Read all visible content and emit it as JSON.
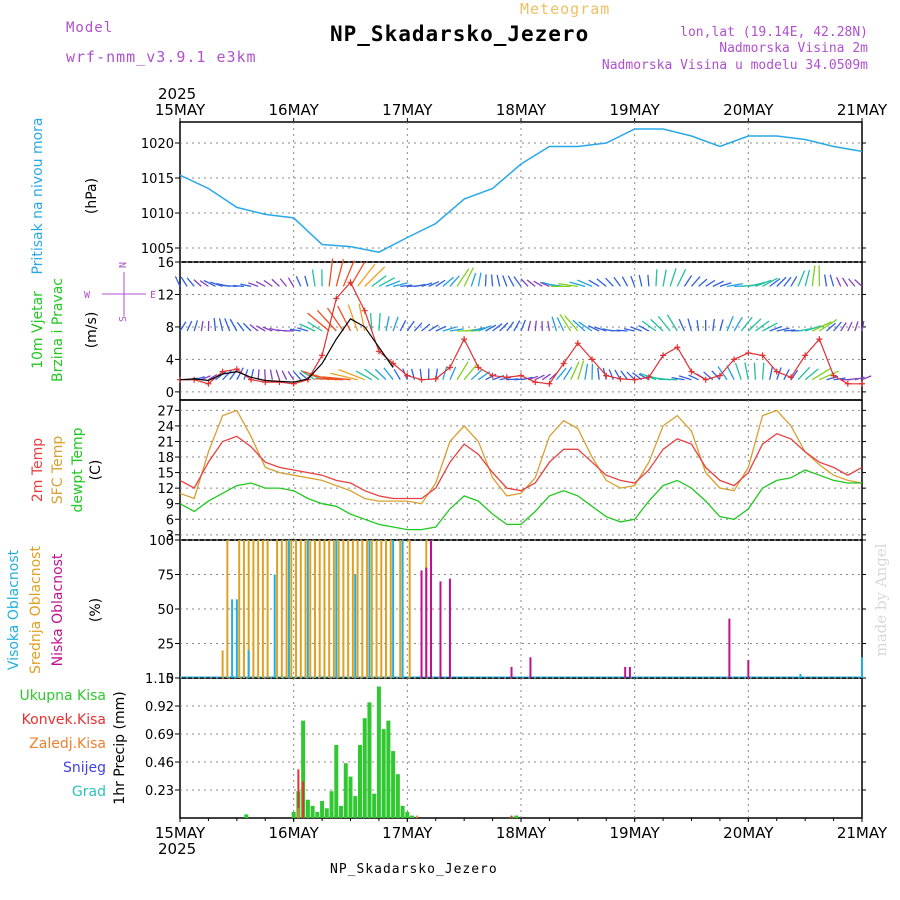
{
  "header": {
    "model_label": "Model",
    "model_name": "wrf-nmm_v3.9.1 e3km",
    "meteogram_label": "Meteogram",
    "title": "NP_Skadarsko_Jezero",
    "lonlat": "lon,lat (19.14E, 42.28N)",
    "altitude": "Nadmorska Visina 2m",
    "model_altitude": "Nadmorska Visina u modelu 34.0509m"
  },
  "footer": {
    "station": "NP_Skadarsko_Jezero"
  },
  "watermark": "made by Angel",
  "time_axis": {
    "year": "2025",
    "ticks": [
      "15MAY",
      "16MAY",
      "17MAY",
      "18MAY",
      "19MAY",
      "20MAY",
      "21MAY"
    ]
  },
  "colors": {
    "pressure": "#29a8e8",
    "wind_speed": "#e03030",
    "wind_avg": "#000000",
    "temp2m": "#e84040",
    "sfc": "#d8a030",
    "dewpt": "#20c820",
    "high_cloud": "#20b0e0",
    "mid_cloud": "#e0a020",
    "low_cloud": "#c01090",
    "precip_total": "#30c830",
    "precip_conv": "#e83030",
    "precip_frz": "#f08030",
    "snow": "#4040e0",
    "hail": "#30c0c0",
    "axis_label_purple": "#b050d0"
  },
  "chart_data": [
    {
      "type": "line",
      "title": "Pritisak na nivou mora",
      "ylabel": "(hPa)",
      "ylim": [
        1003,
        1023
      ],
      "yticks": [
        1005,
        1010,
        1015,
        1020
      ],
      "x": [
        0,
        6,
        12,
        18,
        24,
        30,
        36,
        42,
        48,
        54,
        60,
        66,
        72,
        78,
        84,
        90,
        96,
        102,
        108,
        114,
        120,
        126,
        132,
        138,
        144
      ],
      "series": [
        {
          "name": "Pressure",
          "values": [
            1015.4,
            1013.5,
            1010.8,
            1009.8,
            1009.3,
            1005.5,
            1005.2,
            1004.4,
            1006.5,
            1008.5,
            1012.0,
            1013.5,
            1017.0,
            1019.5,
            1019.5,
            1020.0,
            1022.0,
            1022.0,
            1021.0,
            1019.5,
            1021.0,
            1021.0,
            1020.5,
            1019.5,
            1018.8
          ]
        }
      ]
    },
    {
      "type": "line",
      "title": "10m Vjetar Brzina i Pravac",
      "ylabel": "(m/s)",
      "ylim": [
        -1,
        16
      ],
      "yticks": [
        0,
        4,
        8,
        12,
        16
      ],
      "legend_compass": [
        "W",
        "E",
        "N",
        "S"
      ],
      "x": [
        0,
        3,
        6,
        9,
        12,
        15,
        18,
        21,
        24,
        27,
        30,
        33,
        36,
        39,
        42,
        45,
        48,
        51,
        54,
        57,
        60,
        63,
        66,
        69,
        72,
        75,
        78,
        81,
        84,
        87,
        90,
        93,
        96,
        99,
        102,
        105,
        108,
        111,
        114,
        117,
        120,
        123,
        126,
        129,
        132,
        135,
        138,
        141,
        144
      ],
      "series": [
        {
          "name": "Wind speed",
          "values": [
            1.5,
            1.5,
            1.0,
            2.5,
            2.8,
            1.5,
            1.2,
            1.2,
            1.0,
            1.5,
            4.5,
            11.5,
            13.5,
            10.0,
            5.0,
            3.5,
            2.0,
            1.5,
            1.6,
            3.0,
            6.5,
            3.0,
            2.0,
            1.8,
            2.0,
            1.2,
            1.0,
            3.5,
            6.0,
            4.0,
            2.0,
            1.6,
            1.5,
            1.8,
            4.5,
            5.5,
            2.5,
            1.5,
            2.0,
            4.0,
            4.8,
            4.5,
            2.5,
            1.8,
            4.5,
            6.5,
            2.0,
            1.0,
            1.0
          ]
        },
        {
          "name": "Wind average",
          "values": [
            1.5,
            1.6,
            1.4,
            2.2,
            2.5,
            1.8,
            1.4,
            1.3,
            1.2,
            1.6,
            3.5,
            6.5,
            9.0,
            8.0,
            5.5,
            3.0,
            null,
            null,
            null,
            null,
            null,
            null,
            null,
            null,
            null,
            null,
            null,
            null,
            null,
            null,
            null,
            null,
            null,
            null,
            null,
            null,
            null,
            null,
            null,
            null,
            null,
            null,
            null,
            null,
            null,
            null,
            null,
            null,
            null
          ]
        }
      ]
    },
    {
      "type": "line",
      "title": "2m Temp / SFC Temp / dewpt Temp",
      "ylabel": "(C)",
      "ylim": [
        2,
        29
      ],
      "yticks": [
        3,
        6,
        9,
        12,
        15,
        18,
        21,
        24,
        27
      ],
      "x": [
        0,
        3,
        6,
        9,
        12,
        15,
        18,
        21,
        24,
        27,
        30,
        33,
        36,
        39,
        42,
        45,
        48,
        51,
        54,
        57,
        60,
        63,
        66,
        69,
        72,
        75,
        78,
        81,
        84,
        87,
        90,
        93,
        96,
        99,
        102,
        105,
        108,
        111,
        114,
        117,
        120,
        123,
        126,
        129,
        132,
        135,
        138,
        141,
        144
      ],
      "series": [
        {
          "name": "2m Temp",
          "values": [
            13.5,
            12.0,
            17.0,
            21.0,
            22.0,
            20.0,
            17.0,
            16.0,
            15.5,
            15.0,
            14.5,
            13.5,
            13.0,
            11.5,
            10.5,
            10.0,
            10.0,
            10.0,
            12.0,
            17.0,
            20.5,
            18.5,
            15.0,
            12.0,
            11.5,
            13.0,
            17.0,
            19.5,
            19.5,
            17.0,
            14.5,
            13.5,
            13.0,
            15.5,
            19.5,
            21.5,
            20.5,
            16.0,
            13.5,
            12.5,
            15.0,
            20.5,
            22.5,
            21.5,
            19.0,
            17.0,
            16.0,
            14.5,
            16.0
          ]
        },
        {
          "name": "SFC Temp",
          "values": [
            11.0,
            10.0,
            19.0,
            26.0,
            27.0,
            22.0,
            16.0,
            15.0,
            14.5,
            14.0,
            13.5,
            12.5,
            11.5,
            10.0,
            9.5,
            9.5,
            9.5,
            9.0,
            13.0,
            21.0,
            24.0,
            21.0,
            14.0,
            10.5,
            11.0,
            14.0,
            22.0,
            25.0,
            23.5,
            18.0,
            13.5,
            12.0,
            12.5,
            17.0,
            24.0,
            26.0,
            23.0,
            15.0,
            12.0,
            11.5,
            16.0,
            26.0,
            27.0,
            24.0,
            19.0,
            16.5,
            14.5,
            13.5,
            13.0
          ]
        },
        {
          "name": "dewpt Temp",
          "values": [
            9.0,
            7.5,
            9.5,
            11.0,
            12.5,
            13.0,
            12.0,
            12.0,
            11.5,
            10.0,
            9.0,
            8.5,
            7.0,
            6.0,
            5.0,
            4.5,
            4.0,
            4.0,
            4.5,
            8.0,
            10.5,
            9.5,
            7.0,
            5.0,
            5.0,
            7.5,
            10.5,
            11.5,
            10.5,
            8.5,
            6.5,
            5.5,
            6.0,
            9.5,
            12.5,
            13.5,
            12.0,
            9.5,
            6.5,
            6.0,
            8.0,
            12.0,
            13.5,
            14.0,
            15.5,
            14.5,
            13.5,
            13.0,
            13.0
          ]
        }
      ]
    },
    {
      "type": "bar",
      "title": "Visoka / Srednja / Niska Oblacnost",
      "ylabel": "(%)",
      "ylim": [
        0,
        100
      ],
      "yticks": [
        0,
        25,
        50,
        75,
        100
      ],
      "series": [
        {
          "name": "Visoka Oblacnost",
          "x": [
            11,
            12,
            14.5,
            20,
            23,
            27,
            33,
            37,
            40,
            45,
            47,
            131,
            144
          ],
          "values": [
            57,
            57,
            20,
            75,
            100,
            100,
            100,
            75,
            100,
            100,
            100,
            3,
            15
          ]
        },
        {
          "name": "Srednja Oblacnost",
          "x": [
            9,
            10,
            12.5,
            13.5,
            14.5,
            15.5,
            16.5,
            17.5,
            18.5,
            20.5,
            21.5,
            22.5,
            23.5,
            24.5,
            25.5,
            26.5,
            27.5,
            28.5,
            29.5,
            30.5,
            31.5,
            32.5,
            33.5,
            34.5,
            35.5,
            36.5,
            37.5,
            38.5,
            39.5,
            40.5,
            41.5,
            42.5,
            43.5,
            44.5,
            46.5,
            48.5,
            52,
            53
          ],
          "values": [
            20,
            100,
            100,
            100,
            100,
            100,
            100,
            100,
            100,
            100,
            100,
            100,
            100,
            100,
            100,
            100,
            100,
            100,
            100,
            100,
            100,
            100,
            100,
            100,
            100,
            100,
            100,
            100,
            100,
            100,
            100,
            100,
            100,
            100,
            100,
            100,
            100,
            100
          ]
        },
        {
          "name": "Niska Oblacnost",
          "x": [
            51,
            52,
            53,
            55,
            57,
            70,
            74,
            94,
            95,
            116,
            120
          ],
          "values": [
            78,
            80,
            100,
            70,
            72,
            8,
            15,
            8,
            8,
            43,
            13
          ]
        }
      ]
    },
    {
      "type": "bar",
      "title": "1hr Precip",
      "ylabel": "(mm)",
      "ylim": [
        0,
        1.15
      ],
      "yticks": [
        0.23,
        0.46,
        0.69,
        0.92,
        1.15
      ],
      "legend": [
        "Ukupna Kisa",
        "Konvek.Kisa",
        "Zaledj.Kisa",
        "Snijeg",
        "Grad"
      ],
      "series": [
        {
          "name": "Ukupna Kisa",
          "x": [
            14,
            24,
            25,
            26,
            27,
            28,
            29,
            30,
            31,
            32,
            33,
            34,
            35,
            36,
            37,
            38,
            39,
            40,
            41,
            42,
            43,
            44,
            45,
            46,
            47,
            48,
            49,
            70,
            71
          ],
          "values": [
            0.03,
            0.05,
            0.22,
            0.8,
            0.15,
            0.1,
            0.05,
            0.14,
            0.08,
            0.22,
            0.6,
            0.1,
            0.45,
            0.34,
            0.18,
            0.6,
            0.82,
            0.95,
            0.2,
            1.08,
            0.73,
            0.8,
            0.55,
            0.36,
            0.1,
            0.05,
            0.02,
            0.01,
            0.02
          ]
        },
        {
          "name": "Konvek.Kisa",
          "x": [
            25,
            26,
            70
          ],
          "values": [
            0.4,
            0.3,
            0.02
          ]
        },
        {
          "name": "Zaledj.Kisa",
          "x": [
            25,
            50
          ],
          "values": [
            0.08,
            0.02
          ]
        }
      ]
    }
  ]
}
